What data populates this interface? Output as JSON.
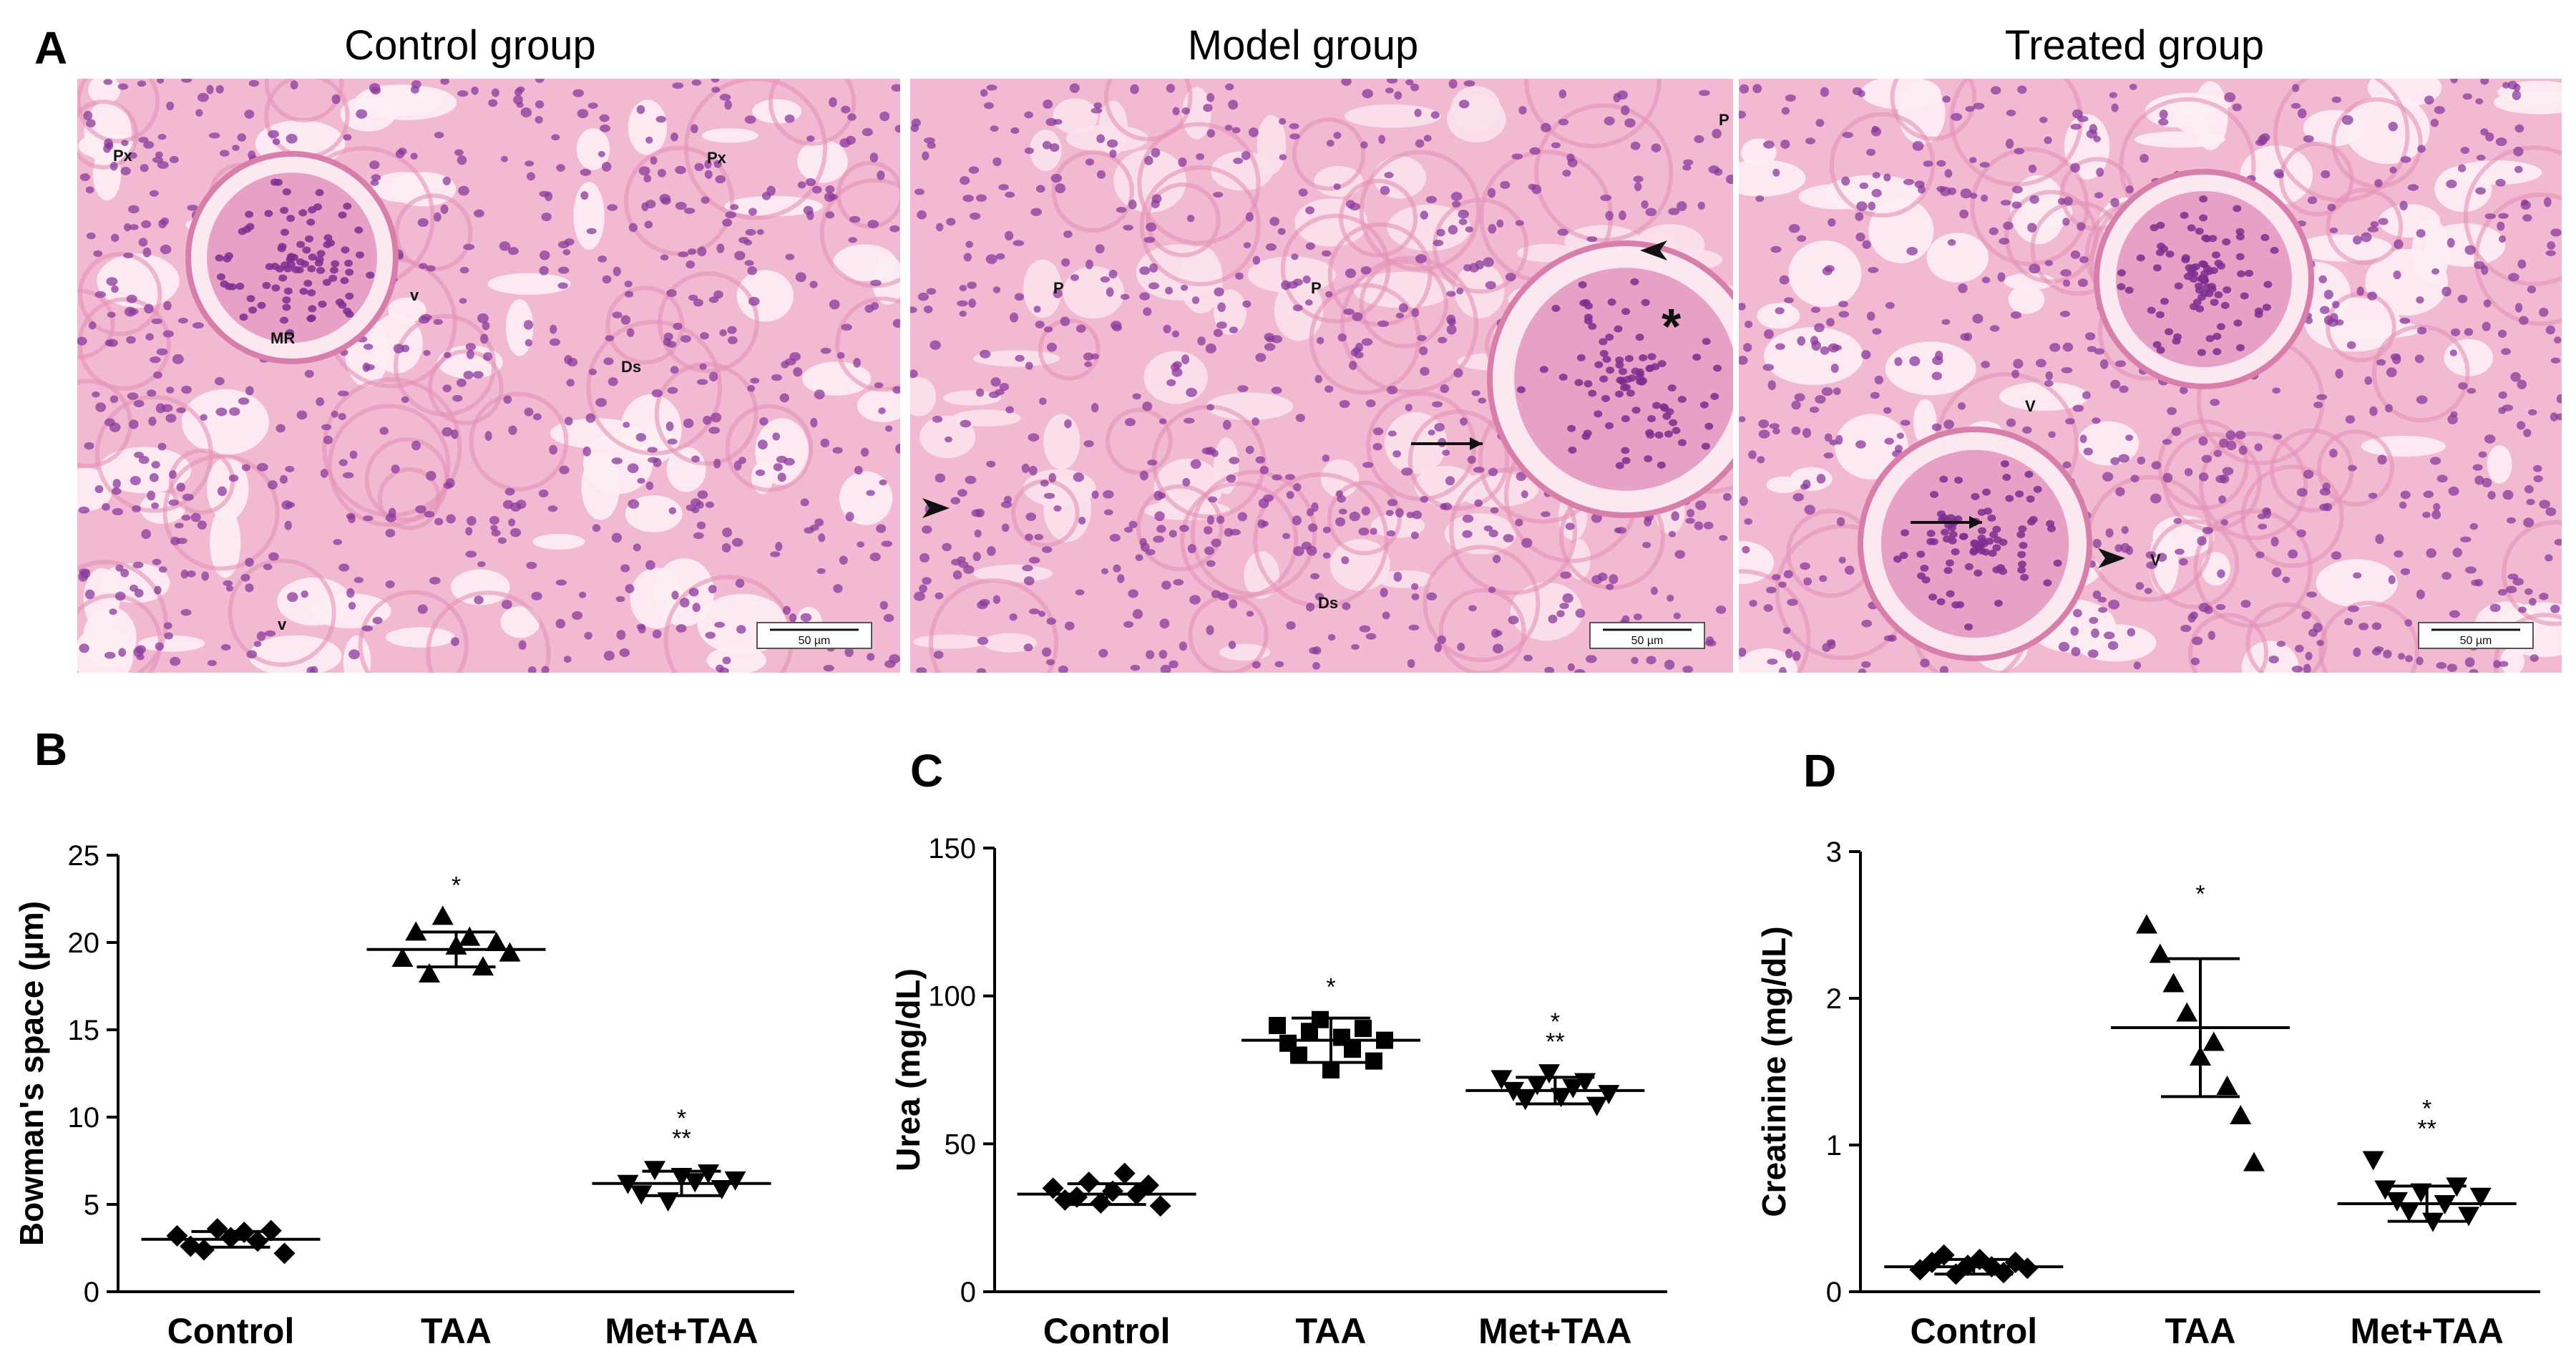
{
  "panel_a": {
    "letter": "A",
    "micrographs": [
      {
        "title": "Control group",
        "labels": [
          "Px",
          "Px",
          "MR",
          "v",
          "Ds",
          "v",
          "v"
        ],
        "scale_bar": "50 µm"
      },
      {
        "title": "Model group",
        "labels": [
          "P",
          "P",
          "P",
          "Ds",
          "*"
        ],
        "scale_bar": "50 µm"
      },
      {
        "title": "Treated group",
        "labels": [
          "V",
          "V"
        ],
        "scale_bar": "50 µm"
      }
    ]
  },
  "chart_data": [
    {
      "panel": "B",
      "type": "scatter",
      "ylabel": "Bowman's space (µm)",
      "xlabel": "",
      "categories": [
        "Control",
        "TAA",
        "Met+TAA"
      ],
      "ylim": [
        0,
        25
      ],
      "yticks": [
        "0",
        "5",
        "10",
        "15",
        "20",
        "25"
      ],
      "markers": [
        "diamond",
        "triangle-up",
        "triangle-down"
      ],
      "points": [
        [
          3.2,
          2.6,
          2.4,
          3.6,
          3.1,
          3.4,
          2.9,
          3.5,
          2.2
        ],
        [
          19.1,
          20.6,
          18.2,
          21.5,
          19.8,
          20.3,
          18.6,
          20.0,
          19.4
        ],
        [
          6.2,
          5.6,
          7.0,
          5.2,
          6.6,
          6.3,
          6.8,
          5.9,
          6.4
        ]
      ],
      "means": [
        3.0,
        19.6,
        6.2
      ],
      "sd": [
        0.45,
        1.0,
        0.7
      ],
      "significance": [
        "",
        "*",
        "*\n**"
      ]
    },
    {
      "panel": "C",
      "type": "scatter",
      "ylabel": "Urea (mg/dL)",
      "xlabel": "",
      "categories": [
        "Control",
        "TAA",
        "Met+TAA"
      ],
      "ylim": [
        0,
        150
      ],
      "yticks": [
        "0",
        "50",
        "100",
        "150"
      ],
      "markers": [
        "diamond",
        "square",
        "triangle-down"
      ],
      "points": [
        [
          35,
          31,
          32,
          37,
          30,
          34,
          40,
          33,
          36,
          29
        ],
        [
          90,
          84,
          80,
          88,
          92,
          75,
          86,
          82,
          89,
          78,
          85
        ],
        [
          72,
          68,
          65,
          70,
          74,
          66,
          69,
          71,
          63,
          67
        ]
      ],
      "means": [
        33,
        85,
        68
      ],
      "sd": [
        3.5,
        7.5,
        4.5
      ],
      "significance": [
        "",
        "*",
        "*\n**"
      ]
    },
    {
      "panel": "D",
      "type": "scatter",
      "ylabel": "Creatinine (mg/dL)",
      "xlabel": "",
      "categories": [
        "Control",
        "TAA",
        "Met+TAA"
      ],
      "ylim": [
        0,
        3
      ],
      "yticks": [
        "0",
        "1",
        "2",
        "3"
      ],
      "markers": [
        "diamond",
        "triangle-up",
        "triangle-down"
      ],
      "points": [
        [
          0.15,
          0.2,
          0.25,
          0.12,
          0.18,
          0.22,
          0.17,
          0.13,
          0.2,
          0.16
        ],
        [
          2.5,
          2.3,
          2.1,
          1.9,
          1.6,
          1.7,
          1.4,
          1.2,
          0.88
        ],
        [
          0.9,
          0.7,
          0.62,
          0.55,
          0.68,
          0.48,
          0.6,
          0.72,
          0.52,
          0.65
        ]
      ],
      "means": [
        0.17,
        1.8,
        0.6
      ],
      "sd": [
        0.05,
        0.47,
        0.12
      ],
      "significance": [
        "",
        "*",
        "*\n**"
      ]
    }
  ]
}
